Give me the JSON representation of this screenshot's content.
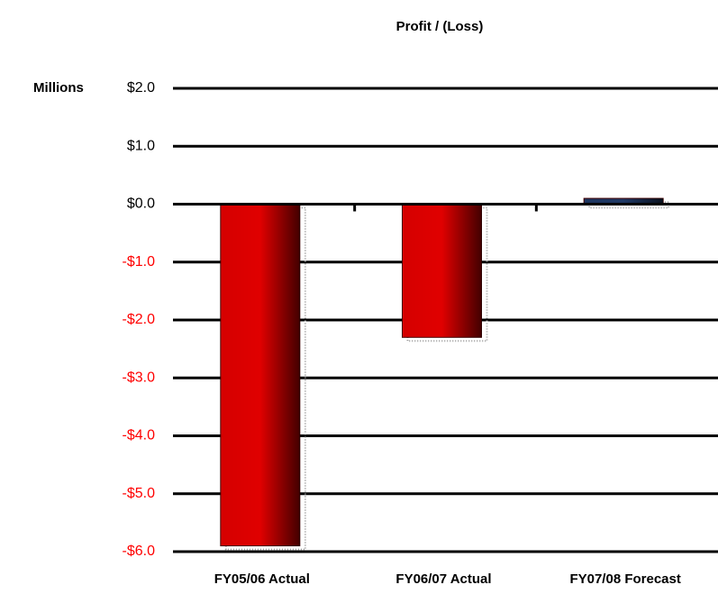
{
  "chart_data": {
    "type": "bar",
    "title": "Profit / (Loss)",
    "y_label": "Millions",
    "categories": [
      "FY05/06 Actual",
      "FY06/07 Actual",
      "FY07/08 Forecast"
    ],
    "values": [
      -5.9,
      -2.3,
      0.1
    ],
    "colors": [
      "#e00000",
      "#e00000",
      "#1f3864"
    ],
    "negative_tick_color": "#ff0000",
    "ylim": [
      -6,
      2
    ],
    "yticks": [
      {
        "value": 2,
        "label": "$2.0"
      },
      {
        "value": 1,
        "label": "$1.0"
      },
      {
        "value": 0,
        "label": "$0.0"
      },
      {
        "value": -1,
        "label": "-$1.0"
      },
      {
        "value": -2,
        "label": "-$2.0"
      },
      {
        "value": -3,
        "label": "-$3.0"
      },
      {
        "value": -4,
        "label": "-$4.0"
      },
      {
        "value": -5,
        "label": "-$5.0"
      },
      {
        "value": -6,
        "label": "-$6.0"
      }
    ],
    "grid": true
  }
}
